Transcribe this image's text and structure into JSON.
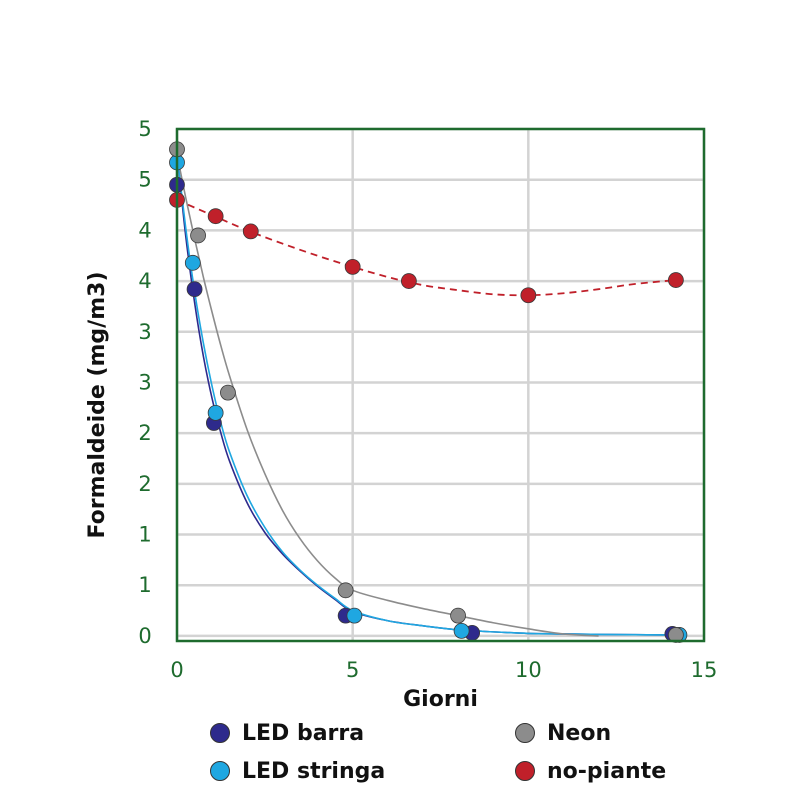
{
  "chart_data": {
    "type": "scatter",
    "xlabel": "Giorni",
    "ylabel": "Formaldeide (mg/m3)",
    "xlim": [
      0,
      15
    ],
    "ylim": [
      -0.05,
      5
    ],
    "x_ticks": [
      0,
      5,
      10,
      15
    ],
    "x_tick_labels": [
      "0",
      "5",
      "10",
      "15"
    ],
    "y_tick_values": [
      0,
      0.5,
      1,
      1.5,
      2,
      2.5,
      3,
      3.5,
      4,
      4.5,
      5
    ],
    "y_tick_labels": [
      "0",
      "1",
      "1",
      "2",
      "2",
      "3",
      "3",
      "4",
      "4",
      "5",
      "5"
    ],
    "grid": true,
    "legend_position": "bottom",
    "series": [
      {
        "name": "LED barra",
        "color": "#2e2a8c",
        "line_style": "solid",
        "x": [
          0,
          0.5,
          1.05,
          4.8,
          8.4,
          14.1
        ],
        "y": [
          4.45,
          3.42,
          2.1,
          0.2,
          0.03,
          0.02
        ],
        "curve_x": [
          0,
          0.25,
          0.5,
          0.75,
          1,
          1.25,
          1.5,
          2,
          2.5,
          3,
          3.5,
          4,
          4.5,
          5,
          6,
          7,
          8,
          9,
          10,
          11,
          12,
          13,
          14
        ],
        "curve_y": [
          4.76,
          3.94,
          3.29,
          2.76,
          2.34,
          2.0,
          1.72,
          1.31,
          1.02,
          0.81,
          0.64,
          0.49,
          0.36,
          0.24,
          0.15,
          0.1,
          0.06,
          0.04,
          0.025,
          0.02,
          0.015,
          0.012,
          0.01
        ]
      },
      {
        "name": "LED stringa",
        "color": "#1fa7e1",
        "line_style": "solid",
        "x": [
          0,
          0.45,
          1.1,
          5.05,
          8.1,
          14.3
        ],
        "y": [
          4.67,
          3.68,
          2.2,
          0.2,
          0.05,
          0.01
        ],
        "curve_x": [
          0,
          0.25,
          0.5,
          0.75,
          1,
          1.25,
          1.5,
          2,
          2.5,
          3,
          3.5,
          4,
          4.5,
          5,
          6,
          7,
          8,
          9,
          10,
          11,
          12,
          13,
          14
        ],
        "curve_y": [
          4.76,
          4.02,
          3.4,
          2.89,
          2.46,
          2.1,
          1.81,
          1.38,
          1.07,
          0.83,
          0.65,
          0.5,
          0.37,
          0.25,
          0.15,
          0.1,
          0.06,
          0.04,
          0.025,
          0.02,
          0.015,
          0.012,
          0.01
        ]
      },
      {
        "name": "Neon",
        "color": "#8c8c8c",
        "line_style": "solid",
        "x": [
          0,
          0.6,
          1.45,
          4.8,
          8.0,
          14.2
        ],
        "y": [
          4.8,
          3.95,
          2.4,
          0.45,
          0.2,
          0.01
        ],
        "curve_x": [
          0,
          0.25,
          0.5,
          0.75,
          1,
          1.25,
          1.5,
          2,
          2.5,
          3,
          3.5,
          4,
          4.5,
          5,
          6,
          7,
          8,
          9,
          10,
          11,
          12
        ],
        "curve_y": [
          4.75,
          4.32,
          3.92,
          3.54,
          3.19,
          2.86,
          2.56,
          2.03,
          1.6,
          1.24,
          0.96,
          0.74,
          0.57,
          0.45,
          0.35,
          0.27,
          0.2,
          0.13,
          0.07,
          0.02,
          0.0
        ]
      },
      {
        "name": "no-piante",
        "color": "#c0202a",
        "line_style": "dashed",
        "x": [
          0,
          1.1,
          2.1,
          5.0,
          6.6,
          10.0,
          14.2
        ],
        "y": [
          4.3,
          4.14,
          3.99,
          3.64,
          3.5,
          3.36,
          3.51
        ],
        "curve_x": [
          0,
          1,
          2,
          3,
          4,
          5,
          6,
          7,
          8,
          9,
          10,
          11,
          12,
          13,
          14.2
        ],
        "curve_y": [
          4.3,
          4.15,
          4.0,
          3.87,
          3.75,
          3.64,
          3.54,
          3.46,
          3.41,
          3.37,
          3.36,
          3.38,
          3.42,
          3.47,
          3.51
        ]
      }
    ],
    "legend": [
      {
        "label": "LED barra",
        "color": "#2e2a8c"
      },
      {
        "label": "Neon",
        "color": "#8c8c8c"
      },
      {
        "label": "LED stringa",
        "color": "#1fa7e1"
      },
      {
        "label": "no-piante",
        "color": "#c0202a"
      }
    ],
    "colors": {
      "frame": "#1e6b2e",
      "tick_text": "#1e6b2e",
      "grid": "#d3d3d3"
    }
  }
}
